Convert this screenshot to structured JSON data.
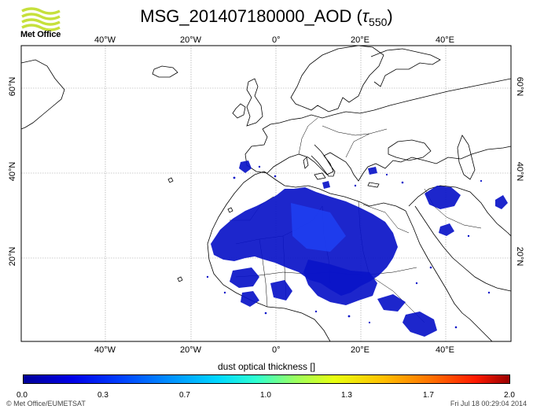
{
  "header": {
    "title_main": "MSG_201407180000_AOD (",
    "title_tau": "τ",
    "title_sub": "550",
    "title_close": ")",
    "logo_text": "Met Office"
  },
  "map": {
    "top_longitude_labels": [
      "40°W",
      "20°W",
      "0°",
      "20°E",
      "40°E"
    ],
    "bottom_longitude_labels": [
      "40°W",
      "20°W",
      "0°",
      "20°E",
      "40°E"
    ],
    "left_latitude_labels": [
      "60°N",
      "40°N",
      "20°N"
    ],
    "right_latitude_labels": [
      "60°N",
      "40°N",
      "20°N"
    ],
    "land_color": "#ffffff",
    "coast_color": "#000000",
    "grid_color": "#999999",
    "dust_color": "#0a14c8"
  },
  "colorbar": {
    "title": "dust optical thickness []",
    "labels": [
      "0.0",
      "0.3",
      "0.7",
      "1.0",
      "1.3",
      "1.7",
      "2.0"
    ],
    "min": 0.0,
    "max": 2.0
  },
  "footer": {
    "copyright": "© Met Office/EUMETSAT",
    "timestamp": "Fri Jul 18 00:29:04 2014"
  }
}
